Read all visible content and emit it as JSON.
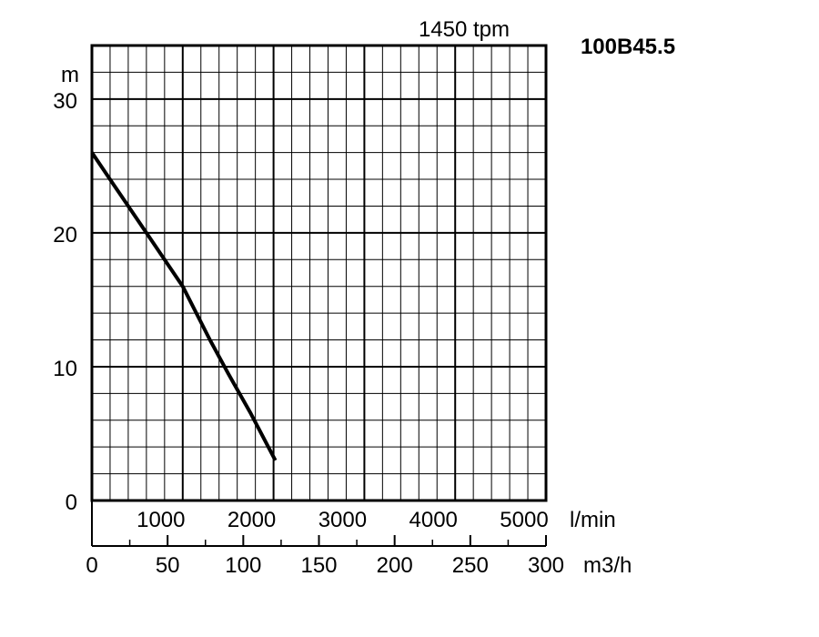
{
  "chart_data": {
    "type": "line",
    "title": "1450 tpm",
    "model": "100B45.5",
    "ylabel": "m",
    "x_unit_top": "l/min",
    "x_unit_bottom": "m3/h",
    "xlim_lmin": [
      0,
      5000
    ],
    "xlim_m3h": [
      0,
      300
    ],
    "ylim": [
      0,
      34
    ],
    "y_ticks": [
      0,
      10,
      20,
      30
    ],
    "x_ticks_lmin": [
      1000,
      2000,
      3000,
      4000,
      5000
    ],
    "x_ticks_m3h": [
      0,
      50,
      100,
      150,
      200,
      250,
      300
    ],
    "grid": true,
    "series": [
      {
        "x_lmin": [
          0,
          300,
          600,
          1000,
          1300,
          1500,
          1750,
          2020
        ],
        "y": [
          26,
          23,
          20,
          16,
          12,
          9.5,
          6.5,
          3
        ]
      }
    ]
  }
}
